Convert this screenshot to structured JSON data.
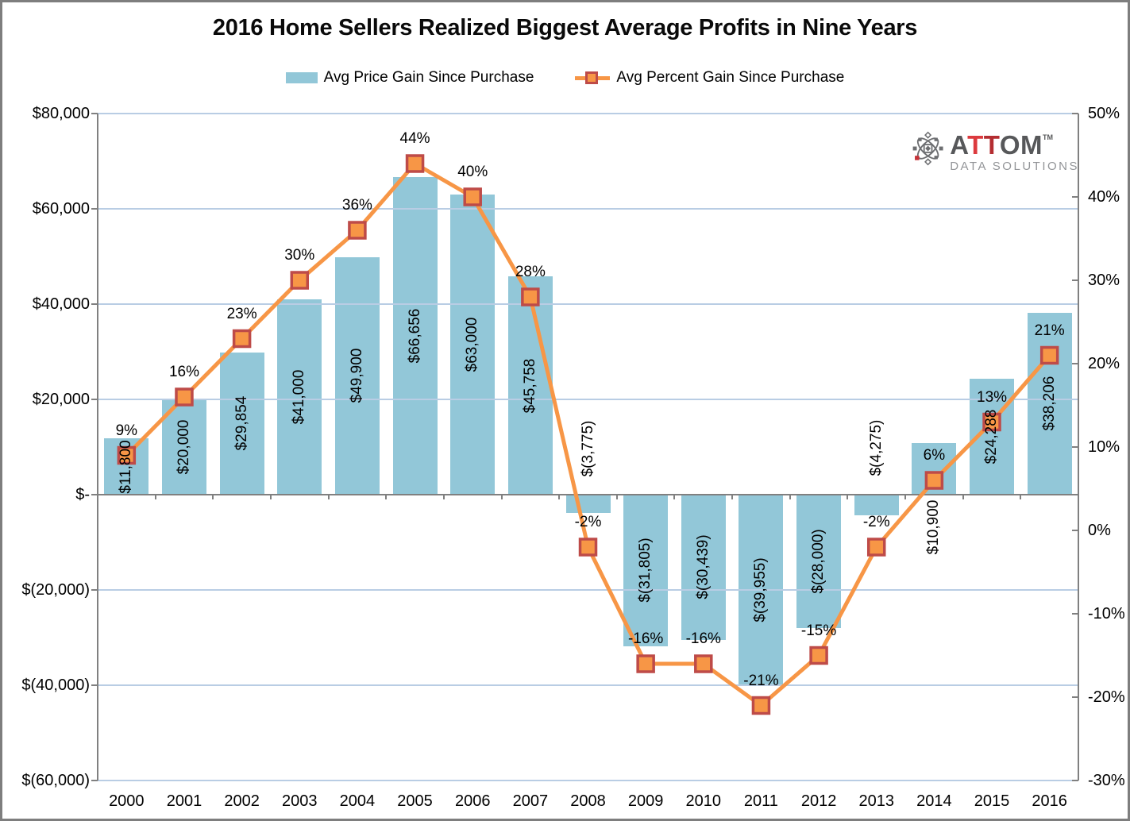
{
  "title": "2016 Home Sellers Realized Biggest Average Profits in Nine Years",
  "legend": {
    "items": [
      {
        "label": "Avg Price Gain Since Purchase",
        "swatch": "blue-bar"
      },
      {
        "label": "Avg Percent Gain Since Purchase",
        "swatch": "orange-line-square-marker"
      }
    ]
  },
  "logo": {
    "brand_a": "A",
    "brand_t1": "T",
    "brand_t2": "T",
    "brand_om": "OM",
    "tm": "TM",
    "subtitle": "DATA SOLUTIONS"
  },
  "colors": {
    "bar_fill": "#92c7d8",
    "line": "#f79646",
    "marker_fill": "#f79646",
    "marker_border": "#be4b48",
    "gridline": "#b9cde4",
    "axis": "#808080",
    "text": "#000000",
    "logo_gray": "#6d6e71",
    "logo_red": "#c63238"
  },
  "chart_data": {
    "type": "bar",
    "combo": [
      "bar",
      "line"
    ],
    "title": "2016 Home Sellers Realized Biggest Average Profits in Nine Years",
    "categories": [
      "2000",
      "2001",
      "2002",
      "2003",
      "2004",
      "2005",
      "2006",
      "2007",
      "2008",
      "2009",
      "2010",
      "2011",
      "2012",
      "2013",
      "2014",
      "2015",
      "2016"
    ],
    "series": [
      {
        "name": "Avg Price Gain Since Purchase",
        "type": "bar",
        "axis": "left",
        "values": [
          11800,
          20000,
          29854,
          41000,
          49900,
          66656,
          63000,
          45758,
          -3775,
          -31805,
          -30439,
          -39955,
          -28000,
          -4275,
          10900,
          24288,
          38206
        ],
        "labels": [
          "$11,800",
          "$20,000",
          "$29,854",
          "$41,000",
          "$49,900",
          "$66,656",
          "$63,000",
          "$45,758",
          "$(3,775)",
          "$(31,805)",
          "$(30,439)",
          "$(39,955)",
          "$(28,000)",
          "$(4,275)",
          "$10,900",
          "$24,288",
          "$38,206"
        ]
      },
      {
        "name": "Avg Percent Gain Since Purchase",
        "type": "line",
        "axis": "right",
        "values": [
          9,
          16,
          23,
          30,
          36,
          44,
          40,
          28,
          -2,
          -16,
          -16,
          -21,
          -15,
          -2,
          6,
          13,
          21
        ],
        "labels": [
          "9%",
          "16%",
          "23%",
          "30%",
          "36%",
          "44%",
          "40%",
          "28%",
          "-2%",
          "-16%",
          "-16%",
          "-21%",
          "-15%",
          "-2%",
          "6%",
          "13%",
          "21%"
        ]
      }
    ],
    "left_axis": {
      "label": "",
      "range": [
        -60000,
        80000
      ],
      "tick_values": [
        80000,
        60000,
        40000,
        20000,
        0,
        -20000,
        -40000,
        -60000
      ],
      "tick_labels": [
        "$80,000",
        "$60,000",
        "$40,000",
        "$20,000",
        "$-",
        "$(20,000)",
        "$(40,000)",
        "$(60,000)"
      ]
    },
    "right_axis": {
      "label": "",
      "range_percent": [
        -30,
        50
      ],
      "tick_values": [
        50,
        40,
        30,
        20,
        10,
        0,
        -10,
        -20,
        -30
      ],
      "tick_labels": [
        "50%",
        "40%",
        "30%",
        "20%",
        "10%",
        "0%",
        "-10%",
        "-20%",
        "-30%"
      ]
    },
    "grid": true,
    "legend_position": "top"
  }
}
